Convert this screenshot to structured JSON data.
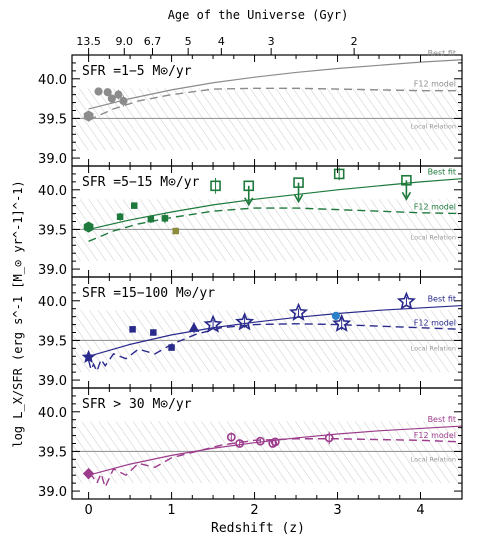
{
  "chart_data": {
    "type": "scatter",
    "title": "",
    "top_axis": {
      "label": "Age of the Universe (Gyr)",
      "ticks": [
        {
          "label": "13.5",
          "z": 0.0
        },
        {
          "label": "9.0",
          "z": 0.43
        },
        {
          "label": "6.7",
          "z": 0.77
        },
        {
          "label": "5",
          "z": 1.2
        },
        {
          "label": "4",
          "z": 1.6
        },
        {
          "label": "3",
          "z": 2.2
        },
        {
          "label": "2",
          "z": 3.2
        }
      ]
    },
    "xlabel": "Redshift (z)",
    "ylabel": "log L_X/SFR (erg s^-1 [M_⊙ yr^-1]^-1)",
    "xlim": [
      -0.2,
      4.5
    ],
    "ylim": [
      38.9,
      40.3
    ],
    "x_ticks": [
      "0",
      "1",
      "2",
      "3",
      "4"
    ],
    "y_ticks": [
      "39.0",
      "39.5",
      "40.0"
    ],
    "panels": [
      {
        "title": "SFR =1−5 M⊙/yr",
        "color": "#8c8c8c",
        "labels": {
          "best_fit": "Best fit",
          "f12": "F12 model",
          "local": "Local Relation"
        },
        "best_fit": {
          "x": [
            0,
            0.5,
            1,
            1.5,
            2,
            2.5,
            3,
            3.5,
            4,
            4.5
          ],
          "y": [
            39.62,
            39.75,
            39.86,
            39.95,
            40.02,
            40.08,
            40.13,
            40.17,
            40.21,
            40.24
          ]
        },
        "f12_model": {
          "x": [
            0,
            0.3,
            0.6,
            1,
            1.5,
            2,
            2.5,
            3,
            3.5,
            4,
            4.5
          ],
          "y": [
            39.48,
            39.62,
            39.72,
            39.8,
            39.87,
            39.88,
            39.88,
            39.87,
            39.86,
            39.85,
            39.85
          ]
        },
        "points": [
          {
            "x": 0.0,
            "y": 39.53,
            "yerr": 0.07,
            "marker": "hexagon",
            "open": false
          },
          {
            "x": 0.12,
            "y": 39.84,
            "yerr": 0.03,
            "marker": "circle",
            "open": false
          },
          {
            "x": 0.23,
            "y": 39.83,
            "yerr": 0.03,
            "marker": "circle",
            "open": false
          },
          {
            "x": 0.28,
            "y": 39.75,
            "yerr": 0.05,
            "marker": "circle",
            "open": false
          },
          {
            "x": 0.36,
            "y": 39.8,
            "yerr": 0.06,
            "marker": "circle",
            "open": false
          },
          {
            "x": 0.42,
            "y": 39.72,
            "yerr": 0.07,
            "marker": "circle",
            "open": false
          }
        ]
      },
      {
        "title": "SFR =5−15 M⊙/yr",
        "color": "#1e7a3c",
        "labels": {
          "best_fit": "Best fit",
          "f12": "F12 model",
          "local": "Local Relation"
        },
        "best_fit": {
          "x": [
            0,
            0.5,
            1,
            1.5,
            2,
            2.5,
            3,
            3.5,
            4,
            4.5
          ],
          "y": [
            39.5,
            39.62,
            39.72,
            39.81,
            39.88,
            39.94,
            40.0,
            40.05,
            40.1,
            40.14
          ]
        },
        "f12_model": {
          "x": [
            0,
            0.3,
            0.6,
            1,
            1.5,
            2,
            2.5,
            3,
            3.5,
            4,
            4.5
          ],
          "y": [
            39.35,
            39.48,
            39.57,
            39.65,
            39.73,
            39.77,
            39.77,
            39.75,
            39.73,
            39.71,
            39.7
          ]
        },
        "points": [
          {
            "x": 0.0,
            "y": 39.53,
            "yerr": 0.04,
            "marker": "hexagon",
            "open": false
          },
          {
            "x": 0.38,
            "y": 39.66,
            "yerr": 0.05,
            "marker": "square",
            "open": false
          },
          {
            "x": 0.55,
            "y": 39.8,
            "yerr": 0.04,
            "marker": "square",
            "open": false
          },
          {
            "x": 0.75,
            "y": 39.63,
            "yerr": 0.05,
            "marker": "square",
            "open": false
          },
          {
            "x": 0.92,
            "y": 39.64,
            "yerr": 0.06,
            "marker": "square",
            "open": false
          },
          {
            "x": 1.05,
            "y": 39.48,
            "yerr": 0.02,
            "marker": "square",
            "open": false,
            "color": "#8c8c3c"
          },
          {
            "x": 1.53,
            "y": 40.05,
            "yerr": 0.1,
            "marker": "square",
            "open": true
          },
          {
            "x": 1.93,
            "y": 40.05,
            "marker": "square",
            "open": true,
            "upper_limit": true
          },
          {
            "x": 2.53,
            "y": 40.09,
            "marker": "square",
            "open": true,
            "upper_limit": true
          },
          {
            "x": 3.02,
            "y": 40.2,
            "yerr": 0.08,
            "marker": "square",
            "open": true
          },
          {
            "x": 3.83,
            "y": 40.12,
            "marker": "square",
            "open": true,
            "upper_limit": true
          }
        ]
      },
      {
        "title": "SFR =15−100 M⊙/yr",
        "color": "#2a2a8c",
        "labels": {
          "best_fit": "Best fit",
          "f12": "F12 model",
          "local": "Local Relation"
        },
        "best_fit": {
          "x": [
            0,
            0.5,
            1,
            1.5,
            2,
            2.5,
            3,
            3.5,
            4,
            4.5
          ],
          "y": [
            39.3,
            39.45,
            39.57,
            39.66,
            39.73,
            39.79,
            39.84,
            39.88,
            39.91,
            39.94
          ]
        },
        "f12_model": {
          "x": [
            0,
            0.03,
            0.06,
            0.1,
            0.15,
            0.2,
            0.3,
            0.45,
            0.6,
            0.8,
            1,
            1.3,
            1.6,
            2,
            2.5,
            3,
            3.5,
            4,
            4.5
          ],
          "y": [
            39.25,
            39.13,
            39.2,
            39.11,
            39.26,
            39.18,
            39.33,
            39.27,
            39.39,
            39.33,
            39.45,
            39.58,
            39.66,
            39.7,
            39.71,
            39.7,
            39.68,
            39.66,
            39.64
          ]
        },
        "points": [
          {
            "x": 0.0,
            "y": 39.29,
            "yerr": 0.03,
            "marker": "star",
            "open": false
          },
          {
            "x": 0.53,
            "y": 39.64,
            "yerr": 0.04,
            "marker": "square",
            "open": false
          },
          {
            "x": 0.78,
            "y": 39.6,
            "yerr": 0.04,
            "marker": "square",
            "open": false
          },
          {
            "x": 1.0,
            "y": 39.41,
            "yerr": 0.04,
            "marker": "square",
            "open": false
          },
          {
            "x": 1.27,
            "y": 39.66,
            "yerr": 0.07,
            "marker": "triangle",
            "open": false
          },
          {
            "x": 1.5,
            "y": 39.7,
            "yerr": 0.06,
            "marker": "star",
            "open": true
          },
          {
            "x": 1.88,
            "y": 39.73,
            "yerr": 0.07,
            "marker": "star",
            "open": true
          },
          {
            "x": 2.53,
            "y": 39.85,
            "yerr": 0.05,
            "marker": "star",
            "open": true
          },
          {
            "x": 2.98,
            "y": 39.81,
            "yerr": 0.04,
            "marker": "circle",
            "open": false,
            "color": "#2a80c8"
          },
          {
            "x": 3.05,
            "y": 39.71,
            "yerr": 0.08,
            "marker": "star",
            "open": true
          },
          {
            "x": 3.83,
            "y": 39.99,
            "yerr": 0.06,
            "marker": "star",
            "open": true
          }
        ]
      },
      {
        "title": "SFR > 30 M⊙/yr",
        "color": "#9c3c8c",
        "labels": {
          "best_fit": "Best fit",
          "f12": "F12 model",
          "local": "Local Relation"
        },
        "best_fit": {
          "x": [
            0,
            0.5,
            1,
            1.5,
            2,
            2.5,
            3,
            3.5,
            4,
            4.5
          ],
          "y": [
            39.2,
            39.34,
            39.45,
            39.54,
            39.61,
            39.67,
            39.72,
            39.76,
            39.79,
            39.82
          ]
        },
        "f12_model": {
          "x": [
            0,
            0.05,
            0.1,
            0.15,
            0.2,
            0.3,
            0.45,
            0.6,
            0.8,
            1,
            1.3,
            1.6,
            2,
            2.5,
            3,
            3.5,
            4,
            4.5
          ],
          "y": [
            39.22,
            39.18,
            39.1,
            39.22,
            39.05,
            39.28,
            39.2,
            39.35,
            39.3,
            39.42,
            39.5,
            39.58,
            39.64,
            39.66,
            39.66,
            39.65,
            39.64,
            39.62
          ]
        },
        "points": [
          {
            "x": 0.0,
            "y": 39.22,
            "yerr": 0.03,
            "marker": "diamond",
            "open": false
          },
          {
            "x": 1.72,
            "y": 39.68,
            "yerr": 0.06,
            "marker": "circle",
            "open": true
          },
          {
            "x": 1.82,
            "y": 39.6,
            "yerr": 0.05,
            "marker": "circle",
            "open": true
          },
          {
            "x": 2.07,
            "y": 39.63,
            "yerr": 0.03,
            "marker": "circle",
            "open": true
          },
          {
            "x": 2.22,
            "y": 39.6,
            "yerr": 0.04,
            "marker": "circle",
            "open": true
          },
          {
            "x": 2.25,
            "y": 39.62,
            "yerr": 0.04,
            "marker": "circle",
            "open": true
          },
          {
            "x": 2.9,
            "y": 39.67,
            "yerr": 0.08,
            "marker": "circle",
            "open": true
          }
        ]
      }
    ],
    "local_relation": {
      "y": 39.5,
      "band": [
        39.1,
        39.88
      ]
    },
    "grid": false
  }
}
